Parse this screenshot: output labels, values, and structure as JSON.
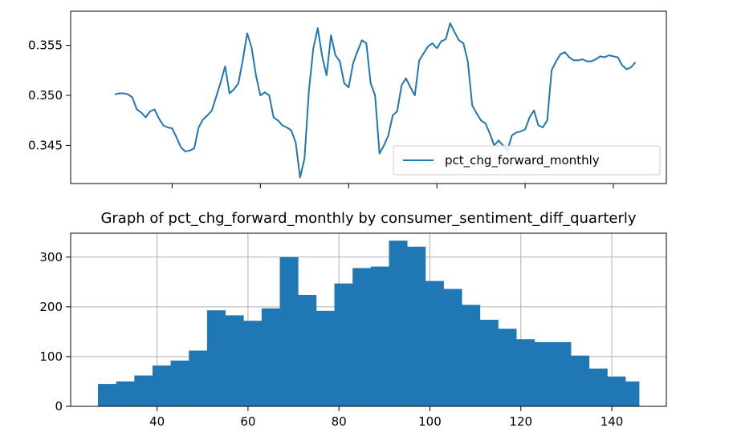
{
  "colors": {
    "series": "#1f77b4",
    "axis": "#000000",
    "grid": "#b0b0b0",
    "legend_border": "#cccccc"
  },
  "chart_data": [
    {
      "type": "line",
      "title": "",
      "xlabel": "",
      "ylabel": "",
      "xlim": [
        17,
        152
      ],
      "ylim": [
        0.3412,
        0.3584
      ],
      "x_ticks": [
        40,
        60,
        80,
        100,
        120,
        140
      ],
      "x_tick_labels_visible": false,
      "y_ticks": [
        0.345,
        0.35,
        0.355
      ],
      "y_tick_labels": [
        "0.345",
        "0.350",
        "0.355"
      ],
      "grid": false,
      "legend": {
        "placement": "lower-right",
        "entries": [
          "pct_chg_forward_monthly"
        ]
      },
      "series": [
        {
          "name": "pct_chg_forward_monthly",
          "x": [
            27,
            28,
            29,
            30,
            31,
            32,
            33,
            34,
            35,
            36,
            37,
            38,
            39,
            40,
            41,
            42,
            43,
            44,
            45,
            46,
            47,
            48,
            49,
            50,
            51,
            52,
            53,
            54,
            55,
            56,
            57,
            58,
            59,
            60,
            61,
            62,
            63,
            64,
            65,
            66,
            67,
            68,
            69,
            70,
            71,
            72,
            73,
            74,
            75,
            76,
            77,
            78,
            79,
            80,
            81,
            82,
            83,
            84,
            85,
            86,
            87,
            88,
            89,
            90,
            91,
            92,
            93,
            94,
            95,
            96,
            97,
            98,
            99,
            100,
            101,
            102,
            103,
            104,
            105,
            106,
            107,
            108,
            109,
            110,
            111,
            112,
            113,
            114,
            115,
            116,
            117,
            118,
            119,
            120,
            121,
            122,
            123,
            124,
            125,
            126,
            127,
            128,
            129,
            130,
            131,
            132,
            133,
            134,
            135,
            136,
            137,
            138,
            139,
            140,
            141,
            142,
            143,
            144,
            145
          ],
          "y": [
            0.3501,
            0.3502,
            0.3502,
            0.3501,
            0.3498,
            0.3486,
            0.3483,
            0.3478,
            0.3484,
            0.3486,
            0.3477,
            0.347,
            0.3468,
            0.3467,
            0.3458,
            0.3448,
            0.3444,
            0.3445,
            0.3447,
            0.3468,
            0.3476,
            0.348,
            0.3485,
            0.3499,
            0.3513,
            0.3529,
            0.3502,
            0.3506,
            0.3512,
            0.3535,
            0.3562,
            0.3548,
            0.352,
            0.35,
            0.3503,
            0.35,
            0.3478,
            0.3475,
            0.347,
            0.3468,
            0.3465,
            0.3453,
            0.3418,
            0.3437,
            0.3505,
            0.3547,
            0.3567,
            0.3539,
            0.352,
            0.356,
            0.354,
            0.3534,
            0.3512,
            0.3508,
            0.3532,
            0.3544,
            0.3555,
            0.3552,
            0.3512,
            0.35,
            0.3442,
            0.345,
            0.346,
            0.348,
            0.3484,
            0.351,
            0.3517,
            0.3508,
            0.35,
            0.3535,
            0.3542,
            0.3549,
            0.3552,
            0.3547,
            0.3554,
            0.3556,
            0.3572,
            0.3563,
            0.3555,
            0.3552,
            0.3534,
            0.349,
            0.3482,
            0.3475,
            0.3472,
            0.3462,
            0.345,
            0.3455,
            0.345,
            0.3445,
            0.346,
            0.3463,
            0.3464,
            0.3466,
            0.3478,
            0.3485,
            0.347,
            0.3468,
            0.3475,
            0.3525,
            0.3534,
            0.3541,
            0.3543,
            0.3538,
            0.3535,
            0.3535,
            0.3536,
            0.3534,
            0.3534,
            0.3536,
            0.3539,
            0.3538,
            0.354,
            0.3539,
            0.3538,
            0.353,
            0.3526,
            0.3528,
            0.3533
          ]
        }
      ]
    },
    {
      "type": "bar",
      "title": "Graph of pct_chg_forward_monthly by consumer_sentiment_diff_quarterly",
      "xlabel": "",
      "ylabel": "",
      "xlim": [
        21,
        152
      ],
      "ylim": [
        0,
        348
      ],
      "x_ticks": [
        40,
        60,
        80,
        100,
        120,
        140
      ],
      "x_tick_labels": [
        "40",
        "60",
        "80",
        "100",
        "120",
        "140"
      ],
      "y_ticks": [
        0,
        100,
        200,
        300
      ],
      "y_tick_labels": [
        "0",
        "100",
        "200",
        "300"
      ],
      "grid": true,
      "bin_edges": [
        27,
        31,
        35,
        39,
        43,
        47,
        51,
        55,
        59,
        63,
        67,
        71,
        75,
        79,
        83,
        87,
        91,
        95,
        99,
        103,
        107,
        111,
        115,
        119,
        123,
        127,
        131,
        135,
        139,
        143,
        146
      ],
      "values": [
        45,
        50,
        62,
        82,
        92,
        112,
        193,
        183,
        172,
        197,
        300,
        224,
        192,
        247,
        278,
        281,
        333,
        321,
        252,
        236,
        204,
        174,
        156,
        135,
        129,
        129,
        102,
        76,
        60,
        50
      ]
    }
  ]
}
